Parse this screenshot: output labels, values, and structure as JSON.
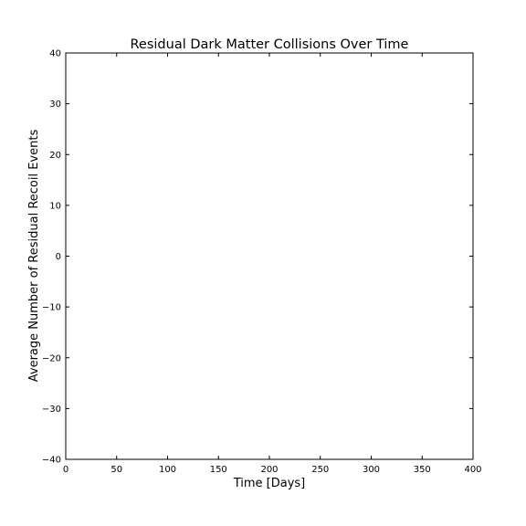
{
  "chart_data": {
    "type": "line",
    "title": "Residual Dark Matter Collisions Over Time",
    "xlabel": "Time [Days]",
    "ylabel": "Average Number of Residual Recoil Events",
    "xlim": [
      0,
      400
    ],
    "ylim": [
      -40,
      40
    ],
    "xticks": [
      0,
      50,
      100,
      150,
      200,
      250,
      300,
      350,
      400
    ],
    "yticks": [
      -40,
      -30,
      -20,
      -10,
      0,
      10,
      20,
      30,
      40
    ],
    "ytick_labels": [
      "−40",
      "−30",
      "−20",
      "−10",
      "0",
      "10",
      "20",
      "30",
      "40"
    ],
    "series": [],
    "grid": false
  }
}
